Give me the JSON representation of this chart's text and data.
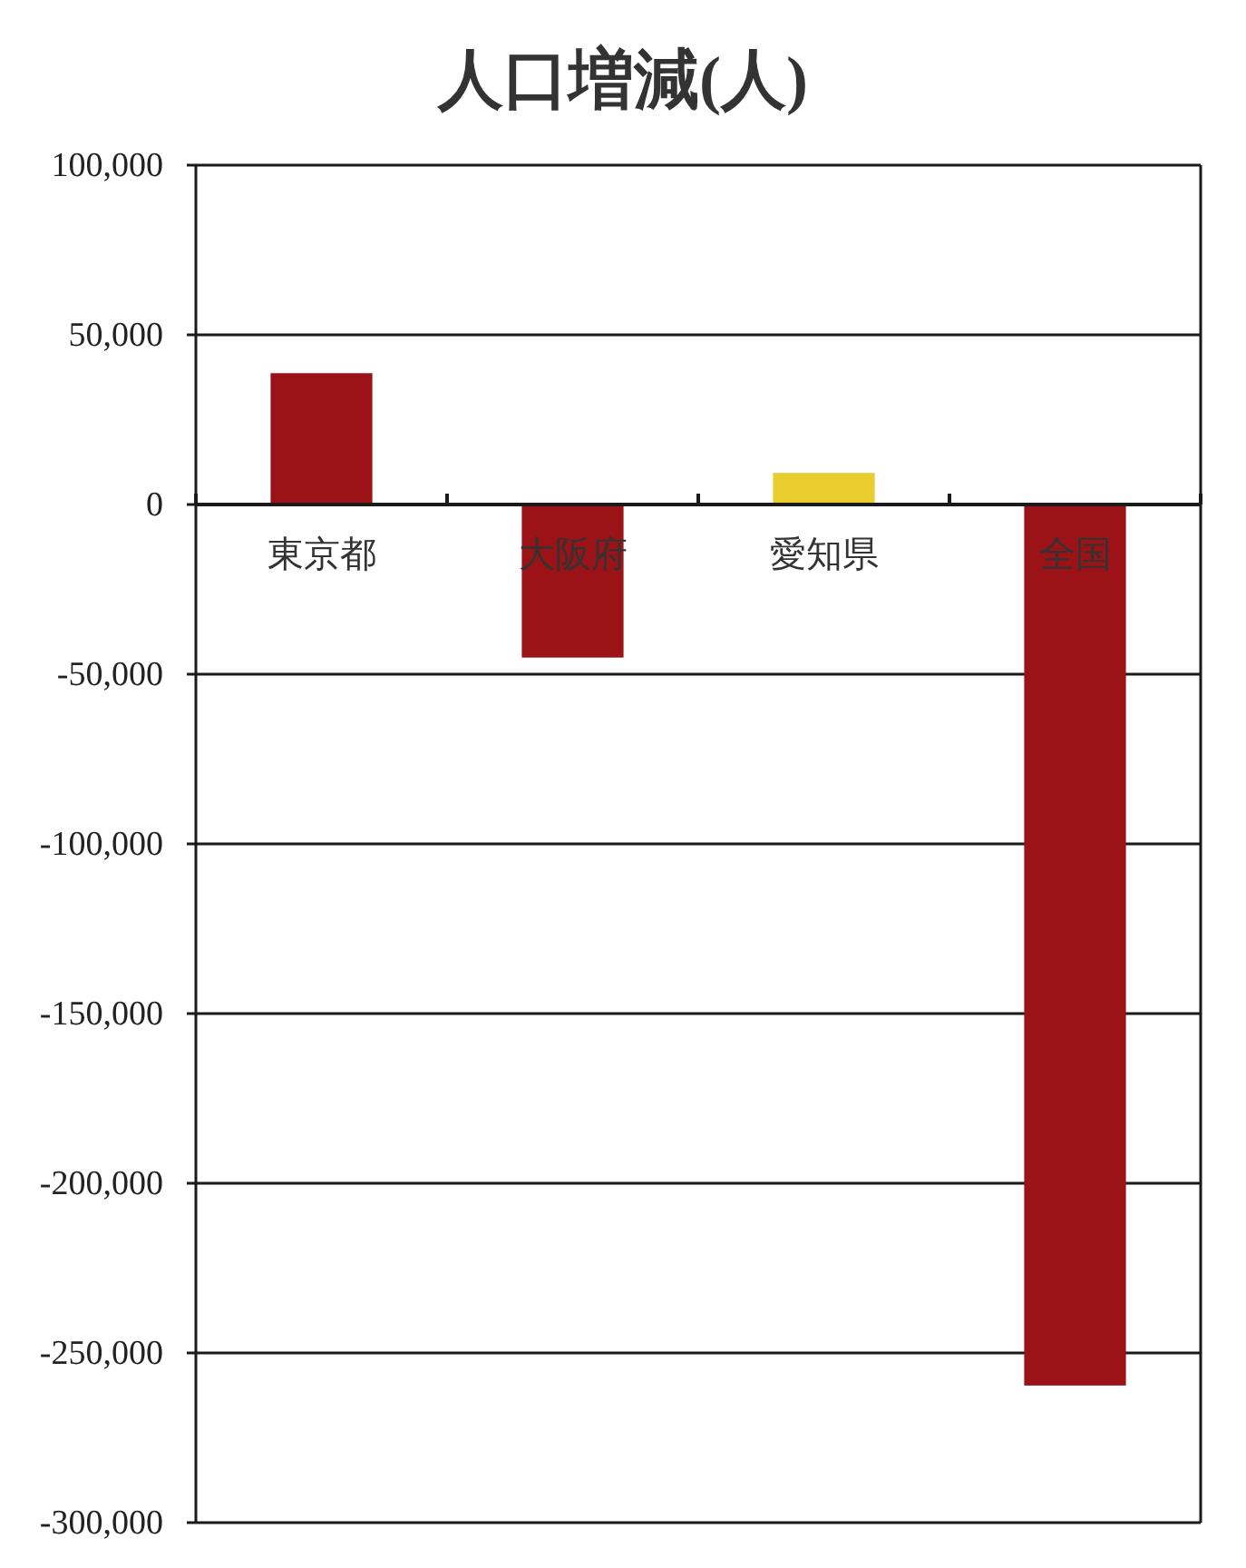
{
  "chart_data": {
    "type": "bar",
    "title": "人口増減(人)",
    "categories": [
      "東京都",
      "大阪府",
      "愛知県",
      "全国"
    ],
    "values": [
      38700,
      -45100,
      9300,
      -259600
    ],
    "colors": [
      "#9b1316",
      "#9b1316",
      "#e9cd2f",
      "#9b1316"
    ],
    "ylim": [
      -300000,
      100000
    ],
    "yticks": [
      {
        "value": -300000,
        "label": "-300,000"
      },
      {
        "value": -250000,
        "label": "-250,000"
      },
      {
        "value": -200000,
        "label": "-200,000"
      },
      {
        "value": -150000,
        "label": "-150,000"
      },
      {
        "value": -100000,
        "label": "-100,000"
      },
      {
        "value": -50000,
        "label": "-50,000"
      },
      0,
      {
        "value": 50000,
        "label": "50,000"
      },
      {
        "value": 100000,
        "label": "100,000"
      }
    ],
    "grid": "y"
  }
}
